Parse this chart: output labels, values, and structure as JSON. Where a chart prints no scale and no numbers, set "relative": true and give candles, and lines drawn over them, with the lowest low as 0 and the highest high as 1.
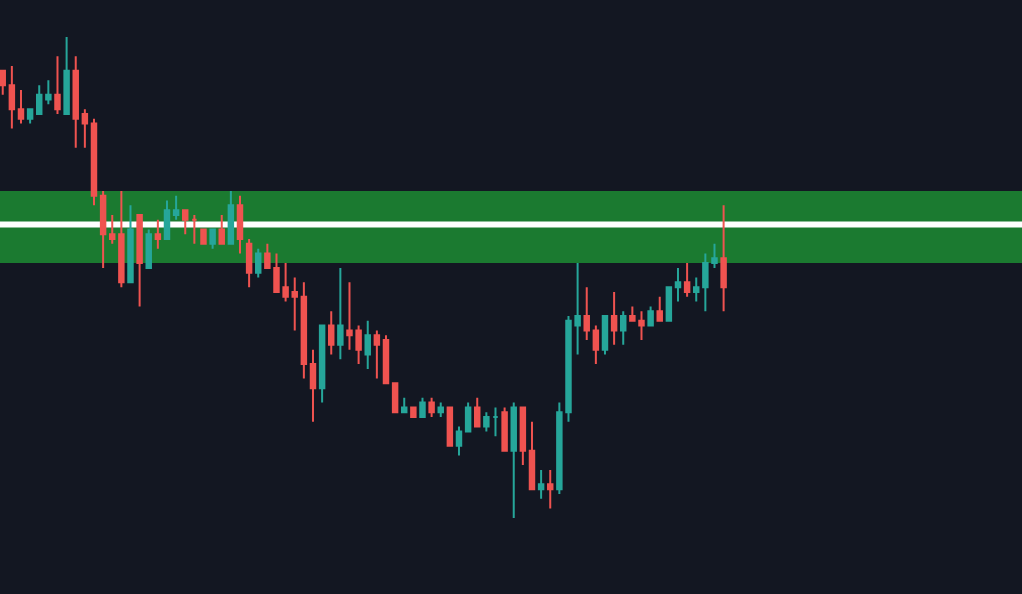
{
  "chart_data": {
    "type": "candlestick",
    "relative": true,
    "categories": [
      null,
      null,
      null,
      null,
      null,
      null,
      null,
      null,
      null,
      null,
      null,
      null,
      null,
      null,
      null,
      null,
      null,
      null,
      null,
      null,
      null,
      null,
      null,
      null,
      null,
      null,
      null,
      null,
      null,
      null,
      null,
      null,
      null,
      null,
      null,
      null,
      null,
      null,
      null,
      null,
      null,
      null,
      null,
      null,
      null,
      null,
      null,
      null,
      null,
      null,
      null,
      null,
      null,
      null,
      null,
      null,
      null,
      null,
      null,
      null,
      null,
      null,
      null,
      null,
      null,
      null,
      null,
      null,
      null,
      null,
      null,
      null,
      null,
      null,
      null,
      null,
      null,
      null,
      null,
      null
    ],
    "ohlc": [
      [
        0.93,
        0.93,
        0.88,
        0.9
      ],
      [
        0.9,
        0.94,
        0.81,
        0.85
      ],
      [
        0.85,
        0.89,
        0.82,
        0.83
      ],
      [
        0.83,
        0.85,
        0.82,
        0.85
      ],
      [
        0.84,
        0.9,
        0.84,
        0.88
      ],
      [
        0.87,
        0.91,
        0.86,
        0.88
      ],
      [
        0.88,
        0.96,
        0.84,
        0.85
      ],
      [
        0.84,
        1.0,
        0.84,
        0.93
      ],
      [
        0.93,
        0.96,
        0.77,
        0.83
      ],
      [
        0.84,
        0.85,
        0.77,
        0.82
      ],
      [
        0.82,
        0.83,
        0.65,
        0.67
      ],
      [
        0.67,
        0.68,
        0.52,
        0.59
      ],
      [
        0.59,
        0.63,
        0.57,
        0.58
      ],
      [
        0.59,
        0.68,
        0.48,
        0.49
      ],
      [
        0.49,
        0.65,
        0.49,
        0.6
      ],
      [
        0.63,
        0.63,
        0.44,
        0.53
      ],
      [
        0.52,
        0.6,
        0.52,
        0.59
      ],
      [
        0.59,
        0.62,
        0.56,
        0.58
      ],
      [
        0.58,
        0.66,
        0.58,
        0.64
      ],
      [
        0.63,
        0.67,
        0.62,
        0.64
      ],
      [
        0.64,
        0.64,
        0.59,
        0.62
      ],
      [
        0.62,
        0.63,
        0.57,
        0.62
      ],
      [
        0.6,
        0.6,
        0.57,
        0.57
      ],
      [
        0.57,
        0.6,
        0.56,
        0.6
      ],
      [
        0.6,
        0.63,
        0.57,
        0.57
      ],
      [
        0.57,
        0.68,
        0.57,
        0.65
      ],
      [
        0.65,
        0.67,
        0.55,
        0.58
      ],
      [
        0.57,
        0.58,
        0.48,
        0.51
      ],
      [
        0.51,
        0.56,
        0.5,
        0.55
      ],
      [
        0.55,
        0.57,
        0.52,
        0.52
      ],
      [
        0.52,
        0.55,
        0.47,
        0.47
      ],
      [
        0.48,
        0.53,
        0.45,
        0.46
      ],
      [
        0.47,
        0.5,
        0.39,
        0.46
      ],
      [
        0.46,
        0.49,
        0.29,
        0.32
      ],
      [
        0.32,
        0.35,
        0.2,
        0.27
      ],
      [
        0.27,
        0.4,
        0.24,
        0.4
      ],
      [
        0.4,
        0.43,
        0.34,
        0.36
      ],
      [
        0.36,
        0.52,
        0.33,
        0.4
      ],
      [
        0.39,
        0.49,
        0.35,
        0.38
      ],
      [
        0.39,
        0.4,
        0.32,
        0.35
      ],
      [
        0.34,
        0.41,
        0.31,
        0.38
      ],
      [
        0.38,
        0.39,
        0.29,
        0.36
      ],
      [
        0.37,
        0.38,
        0.28,
        0.28
      ],
      [
        0.28,
        0.28,
        0.22,
        0.22
      ],
      [
        0.22,
        0.25,
        0.22,
        0.23
      ],
      [
        0.23,
        0.23,
        0.21,
        0.21
      ],
      [
        0.21,
        0.25,
        0.21,
        0.24
      ],
      [
        0.24,
        0.25,
        0.21,
        0.22
      ],
      [
        0.22,
        0.24,
        0.21,
        0.23
      ],
      [
        0.23,
        0.23,
        0.15,
        0.15
      ],
      [
        0.15,
        0.19,
        0.13,
        0.18
      ],
      [
        0.18,
        0.24,
        0.18,
        0.23
      ],
      [
        0.23,
        0.25,
        0.19,
        0.19
      ],
      [
        0.19,
        0.22,
        0.18,
        0.21
      ],
      [
        0.21,
        0.23,
        0.17,
        0.21
      ],
      [
        0.22,
        0.23,
        0.14,
        0.14
      ],
      [
        0.14,
        0.24,
        0.0,
        0.23
      ],
      [
        0.23,
        0.23,
        0.11,
        0.14
      ],
      [
        0.14,
        0.2,
        0.06,
        0.06
      ],
      [
        0.06,
        0.1,
        0.04,
        0.07
      ],
      [
        0.07,
        0.1,
        0.02,
        0.06
      ],
      [
        0.06,
        0.24,
        0.05,
        0.22
      ],
      [
        0.22,
        0.42,
        0.2,
        0.41
      ],
      [
        0.4,
        0.53,
        0.34,
        0.42
      ],
      [
        0.42,
        0.48,
        0.37,
        0.39
      ],
      [
        0.39,
        0.4,
        0.32,
        0.35
      ],
      [
        0.35,
        0.42,
        0.34,
        0.42
      ],
      [
        0.42,
        0.47,
        0.36,
        0.39
      ],
      [
        0.39,
        0.43,
        0.36,
        0.42
      ],
      [
        0.42,
        0.44,
        0.41,
        0.41
      ],
      [
        0.41,
        0.43,
        0.37,
        0.4
      ],
      [
        0.4,
        0.44,
        0.4,
        0.43
      ],
      [
        0.43,
        0.46,
        0.41,
        0.41
      ],
      [
        0.41,
        0.48,
        0.41,
        0.48
      ],
      [
        0.48,
        0.52,
        0.45,
        0.49
      ],
      [
        0.49,
        0.53,
        0.46,
        0.47
      ],
      [
        0.47,
        0.5,
        0.45,
        0.48
      ],
      [
        0.48,
        0.55,
        0.43,
        0.53
      ],
      [
        0.53,
        0.57,
        0.52,
        0.54
      ],
      [
        0.54,
        0.65,
        0.43,
        0.48
      ]
    ],
    "colors": [
      "#ef5350",
      "#ef5350",
      "#ef5350",
      "#26a69a",
      "#26a69a",
      "#26a69a",
      "#ef5350",
      "#26a69a",
      "#ef5350",
      "#ef5350",
      "#ef5350",
      "#ef5350",
      "#ef5350",
      "#ef5350",
      "#26a69a",
      "#ef5350",
      "#26a69a",
      "#ef5350",
      "#26a69a",
      "#26a69a",
      "#ef5350",
      "#ef5350",
      "#ef5350",
      "#26a69a",
      "#ef5350",
      "#26a69a",
      "#ef5350",
      "#ef5350",
      "#26a69a",
      "#ef5350",
      "#ef5350",
      "#ef5350",
      "#ef5350",
      "#ef5350",
      "#ef5350",
      "#26a69a",
      "#ef5350",
      "#26a69a",
      "#ef5350",
      "#ef5350",
      "#26a69a",
      "#ef5350",
      "#ef5350",
      "#ef5350",
      "#26a69a",
      "#ef5350",
      "#26a69a",
      "#ef5350",
      "#26a69a",
      "#ef5350",
      "#26a69a",
      "#26a69a",
      "#ef5350",
      "#26a69a",
      "#26a69a",
      "#ef5350",
      "#26a69a",
      "#ef5350",
      "#ef5350",
      "#26a69a",
      "#ef5350",
      "#26a69a",
      "#26a69a",
      "#26a69a",
      "#ef5350",
      "#ef5350",
      "#26a69a",
      "#ef5350",
      "#26a69a",
      "#ef5350",
      "#ef5350",
      "#26a69a",
      "#ef5350",
      "#26a69a",
      "#26a69a",
      "#ef5350",
      "#26a69a",
      "#26a69a",
      "#26a69a",
      "#ef5350"
    ],
    "bands": [
      {
        "axis": "y",
        "from": 0.53,
        "to": 0.68,
        "color": "#1b7a30"
      }
    ],
    "ref_lines": [
      {
        "axis": "y",
        "value": 0.61,
        "color": "#ffffff",
        "line_style": "solid"
      }
    ],
    "legend": false
  }
}
